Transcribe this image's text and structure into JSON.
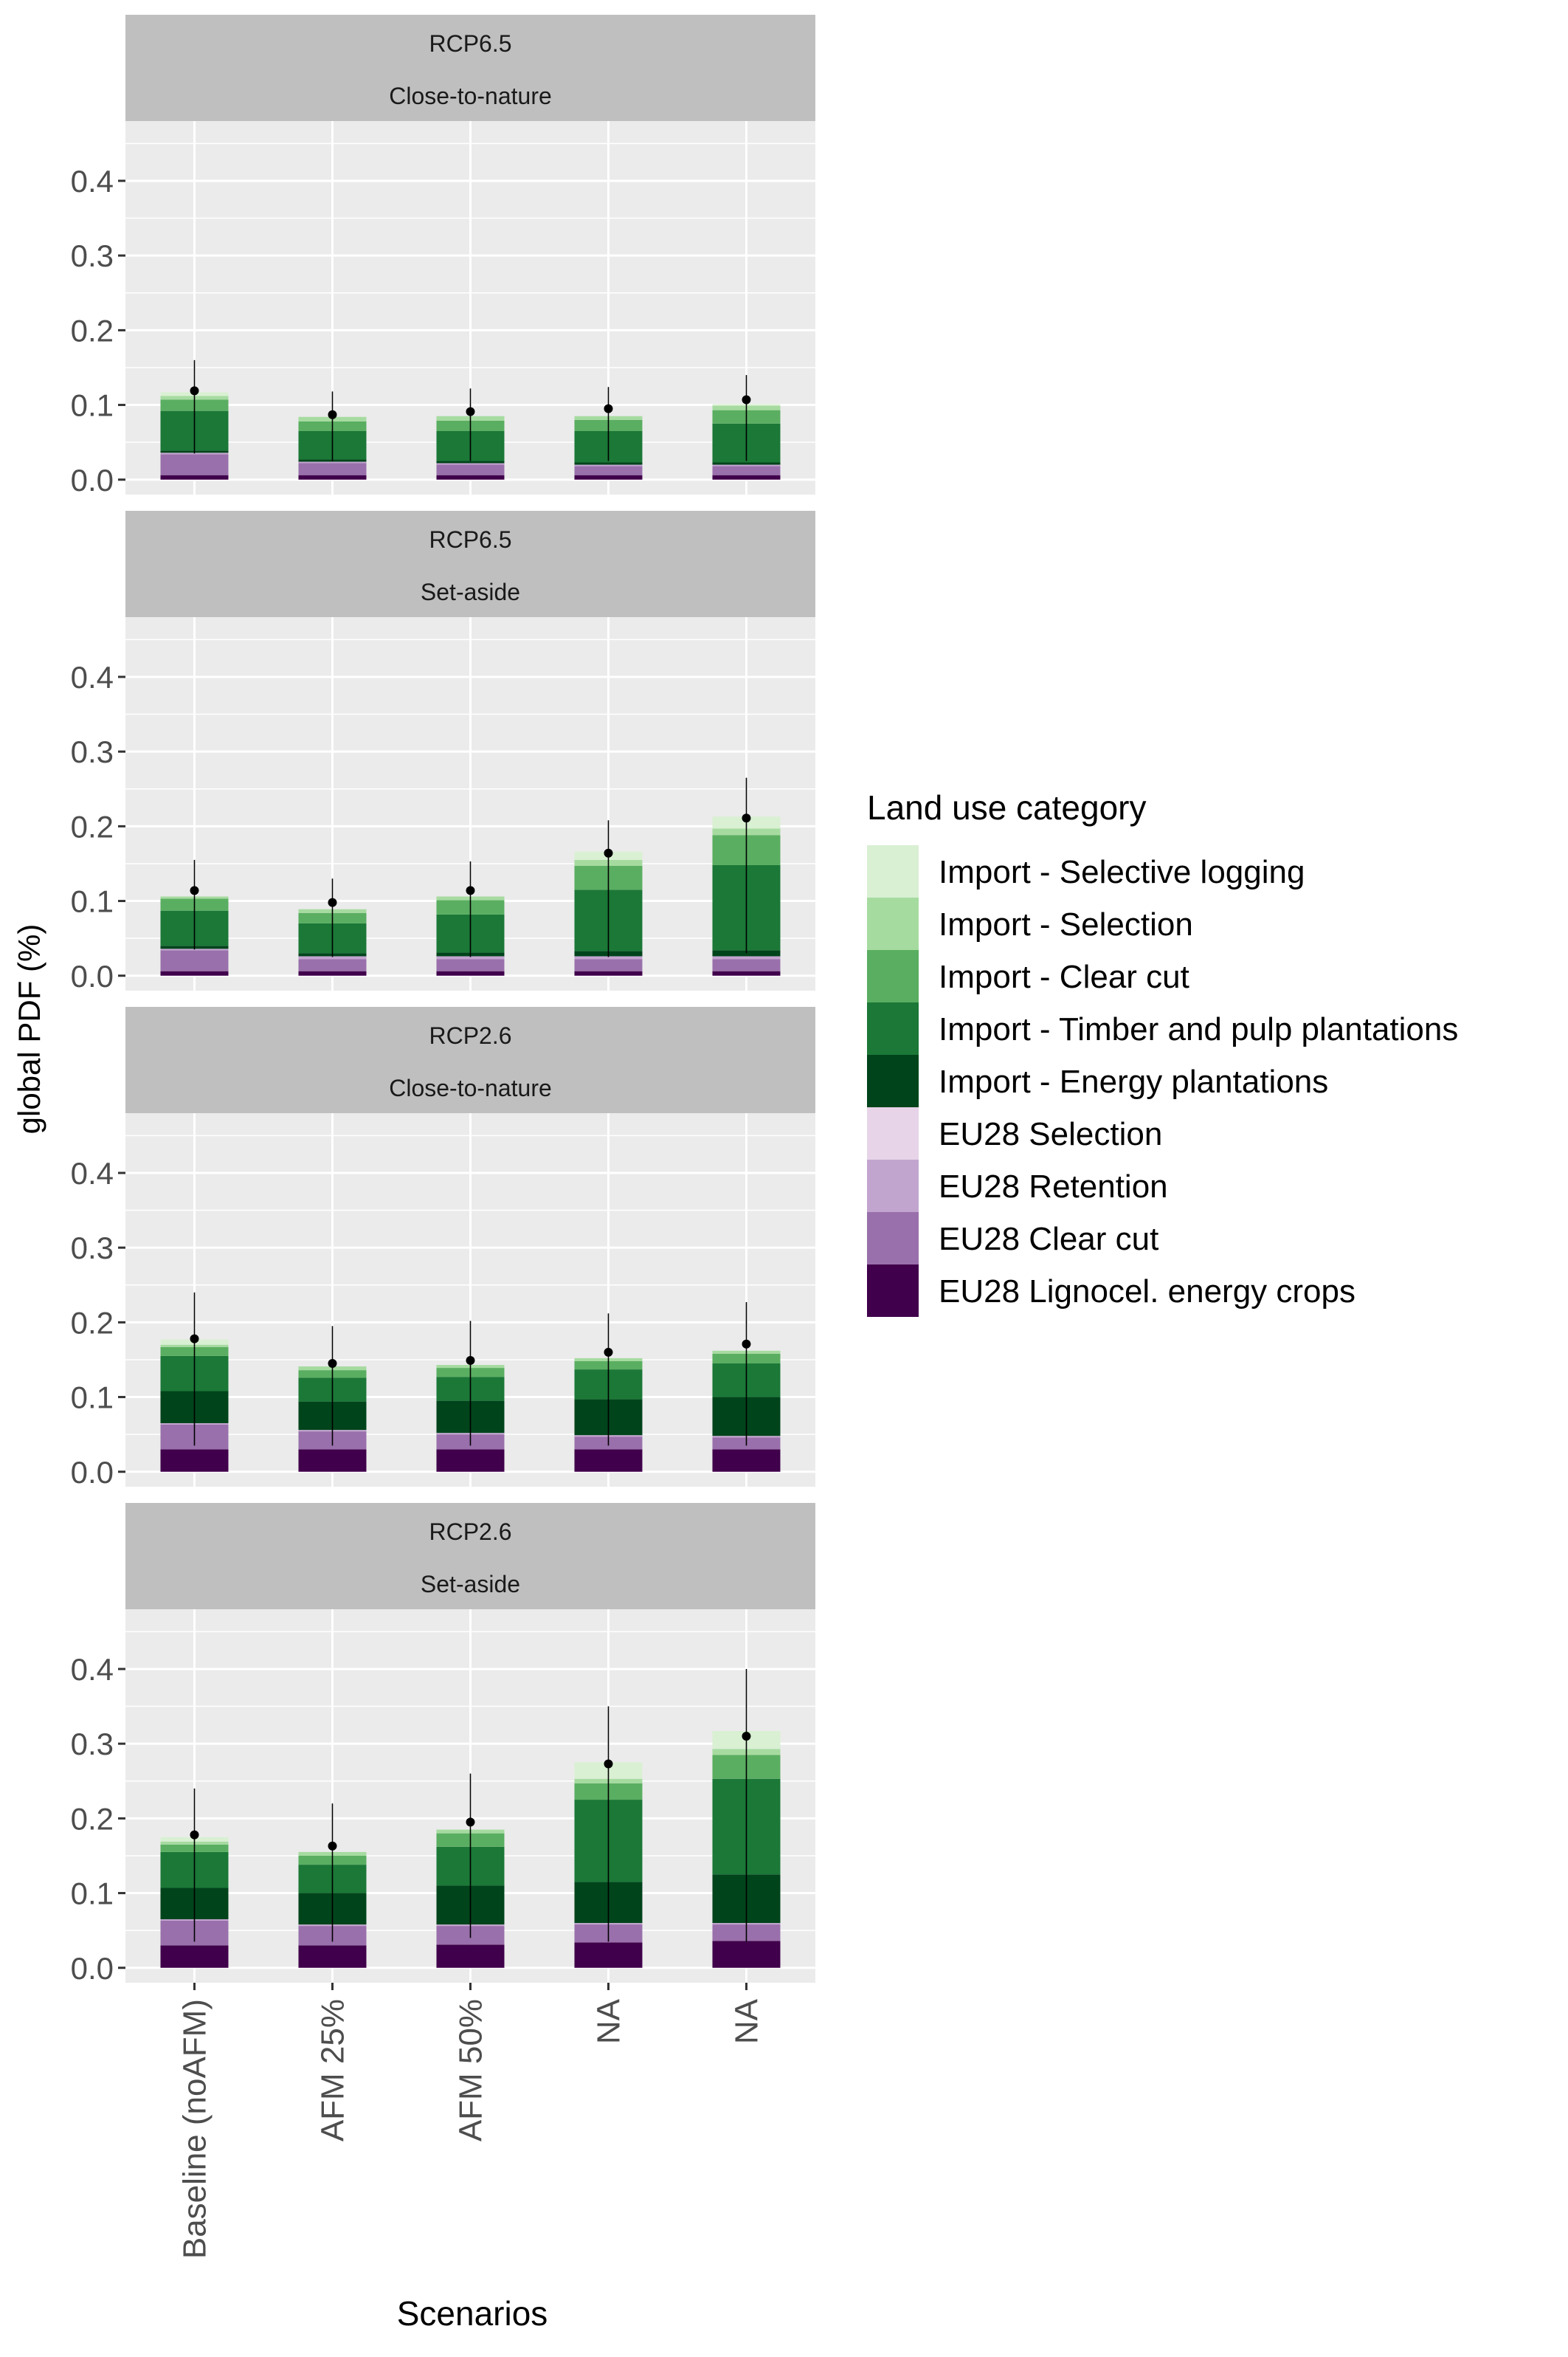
{
  "chart_data": {
    "type": "bar",
    "stacked": true,
    "facet_layout": "vertical",
    "ylabel": "global PDF (%)",
    "xlabel": "Scenarios",
    "ylim": [
      -0.02,
      0.48
    ],
    "yticks": [
      0.0,
      0.1,
      0.2,
      0.3,
      0.4
    ],
    "ytick_labels": [
      "0.0",
      "0.1",
      "0.2",
      "0.3",
      "0.4"
    ],
    "categories": [
      "Baseline (noAFM)",
      "AFM 25%",
      "AFM 50%",
      "NA",
      "NA"
    ],
    "grid": true,
    "legend": {
      "title": "Land use category",
      "placement": "right",
      "entries": [
        {
          "label": "Import - Selective logging",
          "color": "#d9f0d3"
        },
        {
          "label": "Import - Selection",
          "color": "#a6dba0"
        },
        {
          "label": "Import - Clear cut",
          "color": "#5aae61"
        },
        {
          "label": "Import - Timber and pulp plantations",
          "color": "#1b7837"
        },
        {
          "label": "Import - Energy plantations",
          "color": "#00441b"
        },
        {
          "label": "EU28 Selection",
          "color": "#e7d4e8"
        },
        {
          "label": "EU28 Retention",
          "color": "#c2a5cf"
        },
        {
          "label": "EU28 Clear cut",
          "color": "#9970ab"
        },
        {
          "label": "EU28 Lignocel. energy crops",
          "color": "#40004b"
        }
      ]
    },
    "stack_order": [
      "EU28 Lignocel. energy crops",
      "EU28 Clear cut",
      "EU28 Retention",
      "EU28 Selection",
      "Import - Energy plantations",
      "Import - Timber and pulp plantations",
      "Import - Clear cut",
      "Import - Selection",
      "Import - Selective logging"
    ],
    "panels": [
      {
        "strip": [
          "RCP6.5",
          "Close-to-nature"
        ],
        "series": [
          {
            "name": "EU28 Lignocel. energy crops",
            "values": [
              0.006,
              0.006,
              0.006,
              0.006,
              0.006
            ]
          },
          {
            "name": "EU28 Clear cut",
            "values": [
              0.028,
              0.016,
              0.014,
              0.012,
              0.012
            ]
          },
          {
            "name": "EU28 Retention",
            "values": [
              0.002,
              0.002,
              0.002,
              0.002,
              0.002
            ]
          },
          {
            "name": "EU28 Selection",
            "values": [
              0.0,
              0.0,
              0.0,
              0.0,
              0.0
            ]
          },
          {
            "name": "Import - Energy plantations",
            "values": [
              0.003,
              0.003,
              0.003,
              0.003,
              0.003
            ]
          },
          {
            "name": "Import - Timber and pulp plantations",
            "values": [
              0.053,
              0.038,
              0.04,
              0.042,
              0.052
            ]
          },
          {
            "name": "Import - Clear cut",
            "values": [
              0.015,
              0.013,
              0.014,
              0.015,
              0.018
            ]
          },
          {
            "name": "Import - Selection",
            "values": [
              0.005,
              0.006,
              0.006,
              0.005,
              0.006
            ]
          },
          {
            "name": "Import - Selective logging",
            "values": [
              0.005,
              0.0,
              0.0,
              0.0,
              0.002
            ]
          }
        ],
        "mean": [
          0.119,
          0.087,
          0.091,
          0.095,
          0.107
        ],
        "error_low": [
          0.035,
          0.025,
          0.025,
          0.025,
          0.025
        ],
        "error_high": [
          0.16,
          0.118,
          0.122,
          0.124,
          0.14
        ]
      },
      {
        "strip": [
          "RCP6.5",
          "Set-aside"
        ],
        "series": [
          {
            "name": "EU28 Lignocel. energy crops",
            "values": [
              0.006,
              0.006,
              0.006,
              0.006,
              0.006
            ]
          },
          {
            "name": "EU28 Clear cut",
            "values": [
              0.028,
              0.016,
              0.016,
              0.016,
              0.016
            ]
          },
          {
            "name": "EU28 Retention",
            "values": [
              0.002,
              0.004,
              0.004,
              0.004,
              0.004
            ]
          },
          {
            "name": "EU28 Selection",
            "values": [
              0.0,
              0.0,
              0.0,
              0.0,
              0.0
            ]
          },
          {
            "name": "Import - Energy plantations",
            "values": [
              0.004,
              0.004,
              0.005,
              0.007,
              0.008
            ]
          },
          {
            "name": "Import - Timber and pulp plantations",
            "values": [
              0.047,
              0.04,
              0.051,
              0.082,
              0.114
            ]
          },
          {
            "name": "Import - Clear cut",
            "values": [
              0.016,
              0.014,
              0.019,
              0.032,
              0.04
            ]
          },
          {
            "name": "Import - Selection",
            "values": [
              0.003,
              0.005,
              0.005,
              0.008,
              0.009
            ]
          },
          {
            "name": "Import - Selective logging",
            "values": [
              0.0,
              0.0,
              0.0,
              0.011,
              0.016
            ]
          }
        ],
        "mean": [
          0.114,
          0.098,
          0.114,
          0.164,
          0.211
        ],
        "error_low": [
          0.035,
          0.025,
          0.025,
          0.025,
          0.03
        ],
        "error_high": [
          0.155,
          0.13,
          0.153,
          0.208,
          0.265
        ]
      },
      {
        "strip": [
          "RCP2.6",
          "Close-to-nature"
        ],
        "series": [
          {
            "name": "EU28 Lignocel. energy crops",
            "values": [
              0.03,
              0.03,
              0.03,
              0.03,
              0.03
            ]
          },
          {
            "name": "EU28 Clear cut",
            "values": [
              0.033,
              0.024,
              0.02,
              0.017,
              0.016
            ]
          },
          {
            "name": "EU28 Retention",
            "values": [
              0.002,
              0.002,
              0.002,
              0.002,
              0.002
            ]
          },
          {
            "name": "EU28 Selection",
            "values": [
              0.0,
              0.0,
              0.0,
              0.0,
              0.0
            ]
          },
          {
            "name": "Import - Energy plantations",
            "values": [
              0.043,
              0.038,
              0.043,
              0.048,
              0.052
            ]
          },
          {
            "name": "Import - Timber and pulp plantations",
            "values": [
              0.047,
              0.032,
              0.032,
              0.04,
              0.045
            ]
          },
          {
            "name": "Import - Clear cut",
            "values": [
              0.012,
              0.01,
              0.012,
              0.011,
              0.013
            ]
          },
          {
            "name": "Import - Selection",
            "values": [
              0.003,
              0.005,
              0.004,
              0.004,
              0.004
            ]
          },
          {
            "name": "Import - Selective logging",
            "values": [
              0.007,
              0.0,
              0.0,
              0.0,
              0.0
            ]
          }
        ],
        "mean": [
          0.178,
          0.145,
          0.149,
          0.16,
          0.171
        ],
        "error_low": [
          0.035,
          0.035,
          0.035,
          0.035,
          0.035
        ],
        "error_high": [
          0.24,
          0.195,
          0.202,
          0.212,
          0.227
        ]
      },
      {
        "strip": [
          "RCP2.6",
          "Set-aside"
        ],
        "series": [
          {
            "name": "EU28 Lignocel. energy crops",
            "values": [
              0.03,
              0.03,
              0.031,
              0.034,
              0.036
            ]
          },
          {
            "name": "EU28 Clear cut",
            "values": [
              0.033,
              0.026,
              0.025,
              0.024,
              0.022
            ]
          },
          {
            "name": "EU28 Retention",
            "values": [
              0.002,
              0.002,
              0.002,
              0.002,
              0.002
            ]
          },
          {
            "name": "EU28 Selection",
            "values": [
              0.0,
              0.0,
              0.0,
              0.0,
              0.0
            ]
          },
          {
            "name": "Import - Energy plantations",
            "values": [
              0.042,
              0.042,
              0.052,
              0.055,
              0.065
            ]
          },
          {
            "name": "Import - Timber and pulp plantations",
            "values": [
              0.048,
              0.038,
              0.052,
              0.11,
              0.128
            ]
          },
          {
            "name": "Import - Clear cut",
            "values": [
              0.01,
              0.012,
              0.018,
              0.022,
              0.032
            ]
          },
          {
            "name": "Import - Selection",
            "values": [
              0.004,
              0.005,
              0.005,
              0.006,
              0.008
            ]
          },
          {
            "name": "Import - Selective logging",
            "values": [
              0.006,
              0.0,
              0.0,
              0.022,
              0.024
            ]
          }
        ],
        "mean": [
          0.178,
          0.163,
          0.195,
          0.273,
          0.31
        ],
        "error_low": [
          0.035,
          0.035,
          0.04,
          0.035,
          0.035
        ],
        "error_high": [
          0.24,
          0.22,
          0.26,
          0.35,
          0.4
        ]
      }
    ]
  }
}
